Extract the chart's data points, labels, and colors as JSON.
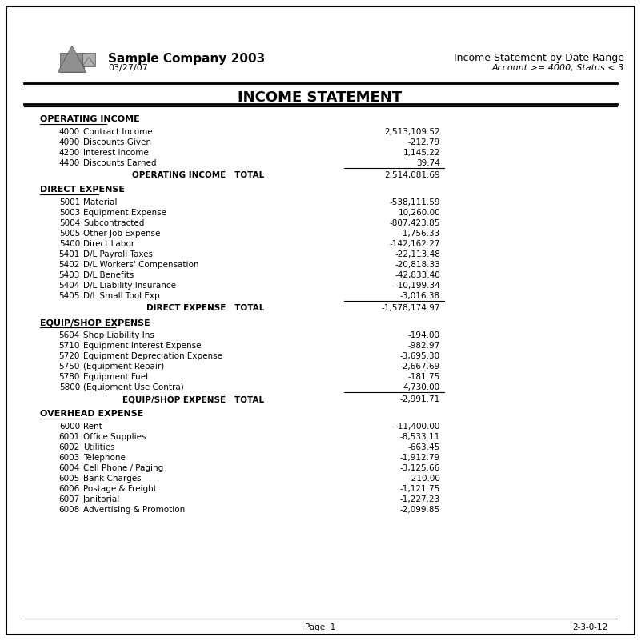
{
  "company_name": "Sample Company 2003",
  "date": "03/27/07",
  "report_title": "Income Statement by Date Range",
  "report_subtitle": "Account >= 4000, Status < 3",
  "main_title": "INCOME STATEMENT",
  "page_label": "Page  1",
  "page_code": "2-3-0-12",
  "sections": [
    {
      "name": "OPERATING INCOME",
      "items": [
        {
          "code": "4000",
          "description": "Contract Income",
          "amount": "2,513,109.52"
        },
        {
          "code": "4090",
          "description": "Discounts Given",
          "amount": "-212.79"
        },
        {
          "code": "4200",
          "description": "Interest Income",
          "amount": "1,145.22"
        },
        {
          "code": "4400",
          "description": "Discounts Earned",
          "amount": "39.74"
        }
      ],
      "total_label": "OPERATING INCOME   TOTAL",
      "total_amount": "2,514,081.69",
      "has_underline_before_total": true
    },
    {
      "name": "DIRECT EXPENSE",
      "items": [
        {
          "code": "5001",
          "description": "Material",
          "amount": "-538,111.59"
        },
        {
          "code": "5003",
          "description": "Equipment Expense",
          "amount": "10,260.00"
        },
        {
          "code": "5004",
          "description": "Subcontracted",
          "amount": "-807,423.85"
        },
        {
          "code": "5005",
          "description": "Other Job Expense",
          "amount": "-1,756.33"
        },
        {
          "code": "5400",
          "description": "Direct Labor",
          "amount": "-142,162.27"
        },
        {
          "code": "5401",
          "description": "D/L Payroll Taxes",
          "amount": "-22,113.48"
        },
        {
          "code": "5402",
          "description": "D/L Workers' Compensation",
          "amount": "-20,818.33"
        },
        {
          "code": "5403",
          "description": "D/L Benefits",
          "amount": "-42,833.40"
        },
        {
          "code": "5404",
          "description": "D/L Liability Insurance",
          "amount": "-10,199.34"
        },
        {
          "code": "5405",
          "description": "D/L Small Tool Exp",
          "amount": "-3,016.38"
        }
      ],
      "total_label": "DIRECT EXPENSE   TOTAL",
      "total_amount": "-1,578,174.97",
      "has_underline_before_total": true
    },
    {
      "name": "EQUIP/SHOP EXPENSE",
      "items": [
        {
          "code": "5604",
          "description": "Shop Liability Ins",
          "amount": "-194.00"
        },
        {
          "code": "5710",
          "description": "Equipment Interest Expense",
          "amount": "-982.97"
        },
        {
          "code": "5720",
          "description": "Equipment Depreciation Expense",
          "amount": "-3,695.30"
        },
        {
          "code": "5750",
          "description": "(Equipment Repair)",
          "amount": "-2,667.69"
        },
        {
          "code": "5780",
          "description": "Equipment Fuel",
          "amount": "-181.75"
        },
        {
          "code": "5800",
          "description": "(Equipment Use Contra)",
          "amount": "4,730.00"
        }
      ],
      "total_label": "EQUIP/SHOP EXPENSE   TOTAL",
      "total_amount": "-2,991.71",
      "has_underline_before_total": true
    },
    {
      "name": "OVERHEAD EXPENSE",
      "items": [
        {
          "code": "6000",
          "description": "Rent",
          "amount": "-11,400.00"
        },
        {
          "code": "6001",
          "description": "Office Supplies",
          "amount": "-8,533.11"
        },
        {
          "code": "6002",
          "description": "Utilities",
          "amount": "-663.45"
        },
        {
          "code": "6003",
          "description": "Telephone",
          "amount": "-1,912.79"
        },
        {
          "code": "6004",
          "description": "Cell Phone / Paging",
          "amount": "-3,125.66"
        },
        {
          "code": "6005",
          "description": "Bank Charges",
          "amount": "-210.00"
        },
        {
          "code": "6006",
          "description": "Postage & Freight",
          "amount": "-1,121.75"
        },
        {
          "code": "6007",
          "description": "Janitorial",
          "amount": "-1,227.23"
        },
        {
          "code": "6008",
          "description": "Advertising & Promotion",
          "amount": "-2,099.85"
        }
      ],
      "total_label": null,
      "total_amount": null,
      "has_underline_before_total": false
    }
  ],
  "bg_color": "#ffffff",
  "border_color": "#000000",
  "text_color": "#000000",
  "gray_color": "#808080"
}
